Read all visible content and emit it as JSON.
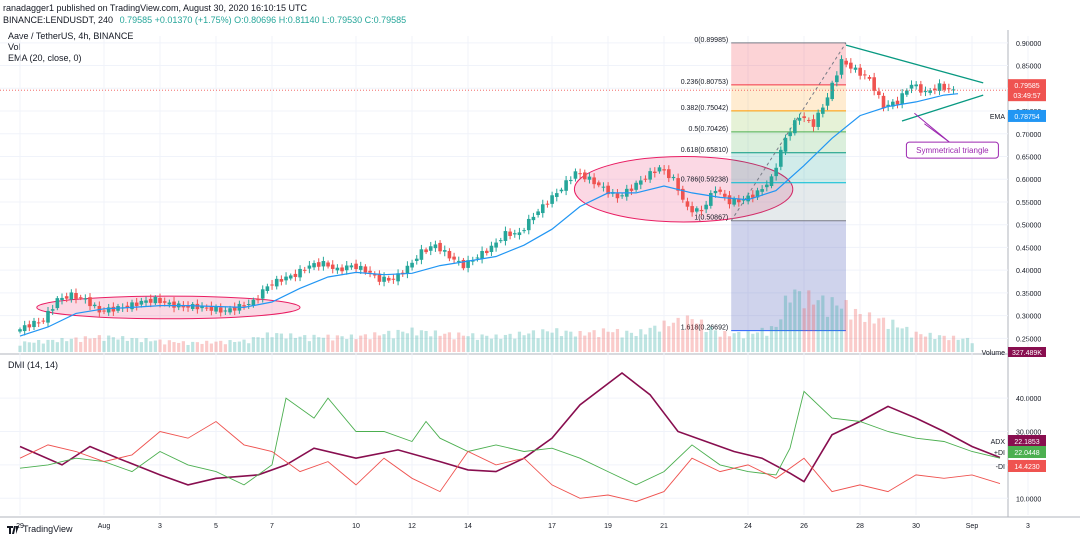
{
  "header": {
    "line1": "ranadagger1 published on TradingView.com, August 30, 2020 16:10:15 UTC",
    "symbol": "BINANCE:LENDUSDT, 240",
    "ohlc": "0.79585 +0.01370 (+1.75%) O:0.80696 H:0.81140 L:0.79530 C:0.79585"
  },
  "legend": {
    "title": "Aave / TetherUS, 4h, BINANCE",
    "vol": "Vol",
    "ema": "EMA (20, close, 0)",
    "dmi": "DMI (14, 14)"
  },
  "branding": {
    "name": "TradingView"
  },
  "colors": {
    "up": "#26a69a",
    "down": "#ef5350",
    "ema": "#2196f3",
    "adx": "#880e4f",
    "plus_di": "#4caf50",
    "minus_di": "#ef5350",
    "triangle": "#089981",
    "annotation": "#9c27b0",
    "ellipse": "#f48fb1"
  },
  "chart_data": [
    {
      "type": "candlestick",
      "title": "Aave / TetherUS, 4h, BINANCE",
      "ylim": [
        0.22,
        0.915
      ],
      "y_ticks": [
        0.9,
        0.85,
        0.8,
        0.75,
        0.7,
        0.65,
        0.6,
        0.55,
        0.5,
        0.45,
        0.4,
        0.35,
        0.3,
        0.25
      ],
      "y_tick_labels": [
        "0.90000",
        "0.85000",
        "0.80000",
        "0.75000",
        "0.70000",
        "0.65000",
        "0.60000",
        "0.55000",
        "0.50000",
        "0.45000",
        "0.40000",
        "0.35000",
        "0.30000",
        "0.25000"
      ],
      "x_labels": [
        {
          "label": "29",
          "day": 0
        },
        {
          "label": "Aug",
          "day": 3
        },
        {
          "label": "3",
          "day": 5
        },
        {
          "label": "5",
          "day": 7
        },
        {
          "label": "7",
          "day": 9
        },
        {
          "label": "10",
          "day": 12
        },
        {
          "label": "12",
          "day": 14
        },
        {
          "label": "14",
          "day": 16
        },
        {
          "label": "17",
          "day": 19
        },
        {
          "label": "19",
          "day": 21
        },
        {
          "label": "21",
          "day": 23
        },
        {
          "label": "24",
          "day": 26
        },
        {
          "label": "26",
          "day": 28
        },
        {
          "label": "28",
          "day": 30
        },
        {
          "label": "30",
          "day": 32
        },
        {
          "label": "Sep",
          "day": 34
        },
        {
          "label": "3",
          "day": 36
        }
      ],
      "close_path": [
        [
          0.0,
          0.265
        ],
        [
          0.5,
          0.28
        ],
        [
          1.0,
          0.29
        ],
        [
          1.5,
          0.335
        ],
        [
          2.0,
          0.345
        ],
        [
          2.5,
          0.335
        ],
        [
          3.0,
          0.31
        ],
        [
          3.5,
          0.315
        ],
        [
          4.0,
          0.32
        ],
        [
          4.5,
          0.33
        ],
        [
          5.0,
          0.335
        ],
        [
          5.5,
          0.325
        ],
        [
          6.0,
          0.32
        ],
        [
          6.5,
          0.32
        ],
        [
          7.0,
          0.315
        ],
        [
          7.5,
          0.31
        ],
        [
          8.0,
          0.32
        ],
        [
          8.5,
          0.33
        ],
        [
          9.0,
          0.365
        ],
        [
          9.5,
          0.38
        ],
        [
          10.0,
          0.39
        ],
        [
          10.5,
          0.41
        ],
        [
          11.0,
          0.415
        ],
        [
          11.5,
          0.4
        ],
        [
          12.0,
          0.41
        ],
        [
          12.5,
          0.4
        ],
        [
          13.0,
          0.38
        ],
        [
          13.5,
          0.38
        ],
        [
          14.0,
          0.405
        ],
        [
          14.5,
          0.44
        ],
        [
          15.0,
          0.455
        ],
        [
          15.5,
          0.43
        ],
        [
          16.0,
          0.41
        ],
        [
          16.5,
          0.43
        ],
        [
          17.0,
          0.45
        ],
        [
          17.5,
          0.48
        ],
        [
          18.0,
          0.48
        ],
        [
          18.5,
          0.52
        ],
        [
          19.0,
          0.55
        ],
        [
          19.5,
          0.58
        ],
        [
          20.0,
          0.615
        ],
        [
          20.5,
          0.6
        ],
        [
          21.0,
          0.58
        ],
        [
          21.5,
          0.56
        ],
        [
          22.0,
          0.58
        ],
        [
          22.5,
          0.605
        ],
        [
          23.0,
          0.625
        ],
        [
          23.5,
          0.6
        ],
        [
          24.0,
          0.535
        ],
        [
          24.5,
          0.53
        ],
        [
          25.0,
          0.58
        ],
        [
          25.5,
          0.55
        ],
        [
          26.0,
          0.555
        ],
        [
          26.5,
          0.57
        ],
        [
          27.0,
          0.6
        ],
        [
          27.5,
          0.69
        ],
        [
          28.0,
          0.74
        ],
        [
          28.5,
          0.72
        ],
        [
          29.0,
          0.78
        ],
        [
          29.5,
          0.86
        ],
        [
          30.0,
          0.84
        ],
        [
          30.5,
          0.82
        ],
        [
          31.0,
          0.76
        ],
        [
          31.5,
          0.77
        ],
        [
          32.0,
          0.81
        ],
        [
          32.5,
          0.79
        ],
        [
          33.0,
          0.805
        ],
        [
          33.5,
          0.795
        ]
      ],
      "ema_path": [
        [
          0.0,
          0.255
        ],
        [
          1.0,
          0.275
        ],
        [
          2.0,
          0.305
        ],
        [
          3.0,
          0.315
        ],
        [
          4.0,
          0.318
        ],
        [
          5.0,
          0.322
        ],
        [
          6.0,
          0.322
        ],
        [
          7.0,
          0.32
        ],
        [
          8.0,
          0.318
        ],
        [
          9.0,
          0.33
        ],
        [
          10.0,
          0.36
        ],
        [
          11.0,
          0.385
        ],
        [
          12.0,
          0.395
        ],
        [
          13.0,
          0.39
        ],
        [
          14.0,
          0.393
        ],
        [
          15.0,
          0.41
        ],
        [
          16.0,
          0.42
        ],
        [
          17.0,
          0.43
        ],
        [
          18.0,
          0.455
        ],
        [
          19.0,
          0.49
        ],
        [
          20.0,
          0.54
        ],
        [
          21.0,
          0.57
        ],
        [
          22.0,
          0.57
        ],
        [
          23.0,
          0.585
        ],
        [
          24.0,
          0.57
        ],
        [
          25.0,
          0.56
        ],
        [
          26.0,
          0.555
        ],
        [
          27.0,
          0.575
        ],
        [
          28.0,
          0.63
        ],
        [
          29.0,
          0.69
        ],
        [
          30.0,
          0.74
        ],
        [
          31.0,
          0.76
        ],
        [
          32.0,
          0.77
        ],
        [
          33.0,
          0.785
        ],
        [
          33.5,
          0.788
        ]
      ],
      "last_price": {
        "value": 0.79585,
        "label": "0.79585",
        "countdown": "03:49:57"
      },
      "ema_value": {
        "value": 0.78754,
        "label": "0.78754",
        "name": "EMA"
      },
      "fibonacci": {
        "x_range": [
          25.4,
          29.5
        ],
        "levels": [
          {
            "ratio": 0,
            "price": 0.89985,
            "label": "0(0.89985)"
          },
          {
            "ratio": 0.236,
            "price": 0.80753,
            "label": "0.236(0.80753)"
          },
          {
            "ratio": 0.382,
            "price": 0.75042,
            "label": "0.382(0.75042)"
          },
          {
            "ratio": 0.5,
            "price": 0.70426,
            "label": "0.5(0.70426)"
          },
          {
            "ratio": 0.618,
            "price": 0.6581,
            "label": "0.618(0.65810)"
          },
          {
            "ratio": 0.786,
            "price": 0.59238,
            "label": "0.786(0.59238)"
          },
          {
            "ratio": 1,
            "price": 0.50867,
            "label": "1(0.50867)"
          },
          {
            "ratio": 1.618,
            "price": 0.26692,
            "label": "1.618(0.26692)"
          }
        ]
      },
      "annotations": [
        {
          "type": "ellipse",
          "cx_day": 5.3,
          "cy": 0.318,
          "rx_day": 4.7,
          "ry": 0.025
        },
        {
          "type": "ellipse",
          "cx_day": 23.7,
          "cy": 0.578,
          "rx_day": 3.9,
          "ry": 0.072
        },
        {
          "type": "triangle",
          "upper": [
            [
              29.5,
              0.895
            ],
            [
              34.4,
              0.812
            ]
          ],
          "lower": [
            [
              31.5,
              0.728
            ],
            [
              34.4,
              0.785
            ]
          ]
        },
        {
          "type": "callout",
          "text": "Symmetrical triangle",
          "x_day": 33.3,
          "y": 0.664
        }
      ],
      "volume": {
        "label": "Volume",
        "value_label": "327.489K",
        "profile": [
          [
            0,
            0.15
          ],
          [
            1.5,
            0.2
          ],
          [
            3,
            0.25
          ],
          [
            4.5,
            0.2
          ],
          [
            6,
            0.15
          ],
          [
            8,
            0.18
          ],
          [
            9,
            0.3
          ],
          [
            10,
            0.25
          ],
          [
            12,
            0.25
          ],
          [
            14,
            0.35
          ],
          [
            15,
            0.3
          ],
          [
            17,
            0.25
          ],
          [
            19,
            0.35
          ],
          [
            20,
            0.3
          ],
          [
            21,
            0.35
          ],
          [
            22,
            0.3
          ],
          [
            23,
            0.45
          ],
          [
            24,
            0.55
          ],
          [
            25,
            0.3
          ],
          [
            26,
            0.3
          ],
          [
            27,
            0.4
          ],
          [
            27.5,
            1.0
          ],
          [
            28,
            0.9
          ],
          [
            29,
            0.8
          ],
          [
            29.5,
            0.75
          ],
          [
            30,
            0.6
          ],
          [
            31,
            0.5
          ],
          [
            32,
            0.3
          ],
          [
            33,
            0.25
          ],
          [
            34,
            0.2
          ]
        ]
      }
    },
    {
      "type": "line",
      "title": "DMI (14, 14)",
      "ylim": [
        5,
        52
      ],
      "y_ticks": [
        40,
        30,
        20,
        10
      ],
      "y_tick_labels": [
        "40.0000",
        "30.0000",
        "20.0000",
        "10.0000"
      ],
      "series": [
        {
          "name": "ADX",
          "label": "22.1853",
          "color": "#880e4f",
          "values": [
            [
              0,
              25.5
            ],
            [
              1.5,
              20
            ],
            [
              2.5,
              25.5
            ],
            [
              3.5,
              22
            ],
            [
              5,
              17
            ],
            [
              6,
              14
            ],
            [
              7,
              16
            ],
            [
              8.5,
              17
            ],
            [
              9.5,
              20
            ],
            [
              10.5,
              25
            ],
            [
              12,
              22
            ],
            [
              13.5,
              24.5
            ],
            [
              15,
              21
            ],
            [
              16,
              18.5
            ],
            [
              17,
              18
            ],
            [
              18,
              22
            ],
            [
              19,
              28
            ],
            [
              20,
              38
            ],
            [
              21.5,
              47.5
            ],
            [
              22.5,
              41
            ],
            [
              23.5,
              30
            ],
            [
              24.5,
              27
            ],
            [
              25.5,
              24
            ],
            [
              26.5,
              22
            ],
            [
              27.5,
              17.5
            ],
            [
              28,
              15
            ],
            [
              29,
              29
            ],
            [
              30,
              33
            ],
            [
              31,
              37.5
            ],
            [
              32,
              34
            ],
            [
              33,
              30
            ],
            [
              34,
              25.5
            ],
            [
              35,
              22.2
            ]
          ]
        },
        {
          "name": "+DI",
          "label": "22.0448",
          "color": "#4caf50",
          "values": [
            [
              0,
              19
            ],
            [
              1,
              20
            ],
            [
              2,
              22
            ],
            [
              3,
              21
            ],
            [
              4,
              18
            ],
            [
              5,
              24
            ],
            [
              6,
              20
            ],
            [
              7,
              18
            ],
            [
              8,
              14
            ],
            [
              9,
              20
            ],
            [
              9.5,
              40
            ],
            [
              10.5,
              34
            ],
            [
              11,
              40
            ],
            [
              12,
              30
            ],
            [
              13,
              30
            ],
            [
              14,
              27
            ],
            [
              14.5,
              33
            ],
            [
              15,
              28
            ],
            [
              16,
              24
            ],
            [
              17,
              26
            ],
            [
              18,
              24
            ],
            [
              19,
              25
            ],
            [
              20,
              22
            ],
            [
              21,
              18
            ],
            [
              22,
              14
            ],
            [
              23,
              18
            ],
            [
              24,
              26
            ],
            [
              25,
              20
            ],
            [
              26,
              18
            ],
            [
              27,
              17
            ],
            [
              27.5,
              25
            ],
            [
              28,
              42
            ],
            [
              29,
              34
            ],
            [
              30,
              33
            ],
            [
              31,
              30
            ],
            [
              32,
              28
            ],
            [
              33,
              27
            ],
            [
              34,
              24
            ],
            [
              35,
              22.0
            ]
          ]
        },
        {
          "name": "-DI",
          "label": "14.4230",
          "color": "#ef5350",
          "values": [
            [
              0,
              22
            ],
            [
              1,
              26
            ],
            [
              2,
              24
            ],
            [
              3,
              21
            ],
            [
              4,
              23
            ],
            [
              5,
              30
            ],
            [
              6,
              28
            ],
            [
              7,
              33
            ],
            [
              8,
              26
            ],
            [
              9,
              24
            ],
            [
              10,
              18
            ],
            [
              11,
              21
            ],
            [
              12,
              14
            ],
            [
              13,
              22
            ],
            [
              14,
              16
            ],
            [
              15,
              12
            ],
            [
              16,
              24
            ],
            [
              17,
              20
            ],
            [
              18,
              22
            ],
            [
              19,
              14
            ],
            [
              20,
              10
            ],
            [
              21,
              11
            ],
            [
              22,
              9
            ],
            [
              23,
              12
            ],
            [
              24,
              22
            ],
            [
              25,
              18
            ],
            [
              26,
              20
            ],
            [
              27,
              16
            ],
            [
              28,
              22
            ],
            [
              29,
              12
            ],
            [
              30,
              14
            ],
            [
              31,
              12
            ],
            [
              32,
              17
            ],
            [
              33,
              16
            ],
            [
              34,
              17
            ],
            [
              35,
              14.4
            ]
          ]
        }
      ]
    }
  ]
}
